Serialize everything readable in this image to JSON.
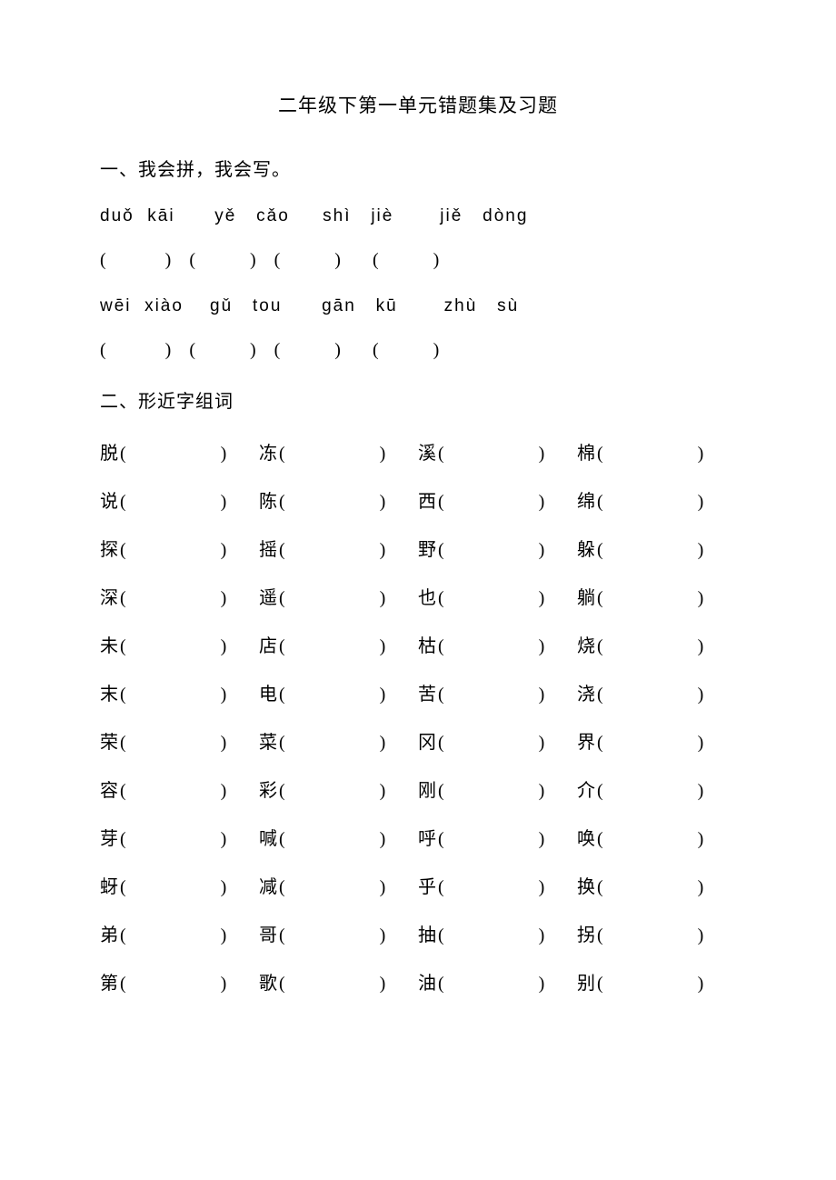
{
  "title": "二年级下第一单元错题集及习题",
  "section1": {
    "header": "一、我会拼，我会写。",
    "pinyin_rows": [
      "duǒ  kāi      yě   cǎo     shì   jiè       jiě   dòng",
      "wēi  xiào    gǔ   tou      gān   kū       zhù   sù"
    ],
    "paren_rows": [
      "(             )    (            )    (            )       (            )",
      "(             )    (            )    (            )       (            )"
    ]
  },
  "section2": {
    "header": "二、形近字组词",
    "rows": [
      [
        "脱",
        "冻",
        "溪",
        "棉"
      ],
      [
        "说",
        "陈",
        "西",
        "绵"
      ],
      [
        "探",
        "摇",
        "野",
        "躲"
      ],
      [
        "深",
        "遥",
        "也",
        "躺"
      ],
      [
        "未",
        "店",
        "枯",
        "烧"
      ],
      [
        "末",
        "电",
        "苦",
        "浇"
      ],
      [
        "荣",
        "菜",
        "冈",
        "界"
      ],
      [
        "容",
        "彩",
        "刚",
        "介"
      ],
      [
        "芽",
        "喊",
        "呼",
        "唤"
      ],
      [
        "蚜",
        "减",
        "乎",
        "换"
      ],
      [
        "弟",
        "哥",
        "抽",
        "拐"
      ],
      [
        "第",
        "歌",
        "油",
        "别"
      ]
    ]
  },
  "paren": {
    "open": "(",
    "close": ")"
  },
  "colors": {
    "background": "#ffffff",
    "text": "#000000"
  },
  "typography": {
    "title_fontsize": 21,
    "body_fontsize": 20,
    "font_family": "SimSun"
  }
}
